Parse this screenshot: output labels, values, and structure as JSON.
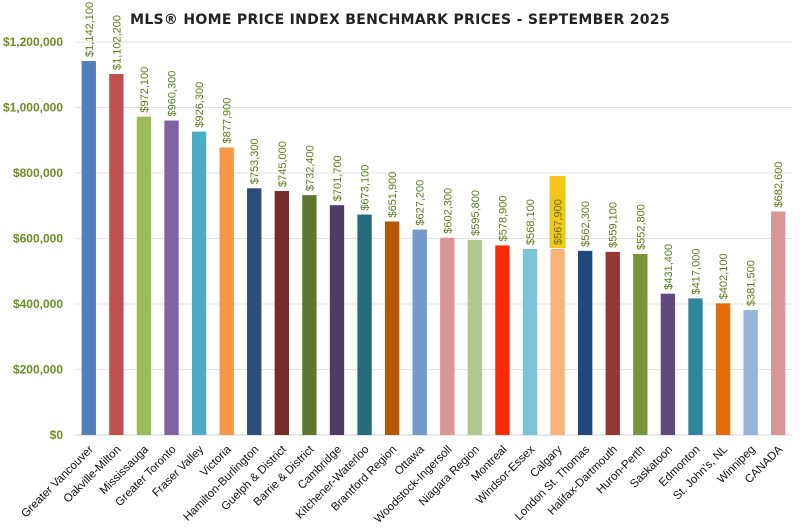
{
  "chart_data": {
    "type": "bar",
    "title": "MLS® HOME PRICE INDEX BENCHMARK PRICES - SEPTEMBER 2025",
    "xlabel": "",
    "ylabel": "",
    "ylim": [
      0,
      1200000
    ],
    "yticks": [
      {
        "value": 0,
        "label": "$0"
      },
      {
        "value": 200000,
        "label": "$200,000"
      },
      {
        "value": 400000,
        "label": "$400,000"
      },
      {
        "value": 600000,
        "label": "$600,000"
      },
      {
        "value": 800000,
        "label": "$800,000"
      },
      {
        "value": 1000000,
        "label": "$1,000,000"
      },
      {
        "value": 1200000,
        "label": "$1,200,000"
      }
    ],
    "grid": true,
    "legend": "none",
    "highlighted_category": "Calgary",
    "highlight_color": "#f5c518",
    "categories": [
      "Greater Vancouver",
      "Oakville-Milton",
      "Mississauga",
      "Greater Toronto",
      "Fraser Valley",
      "Victoria",
      "Hamilton-Burlington",
      "Guelph & District",
      "Barrie & District",
      "Cambridge",
      "Kitchener-Waterloo",
      "Brantford Region",
      "Ottawa",
      "Woodstock-Ingersoll",
      "Niagara Region",
      "Montreal",
      "Windsor-Essex",
      "Calgary",
      "London St. Thomas",
      "Halifax-Dartmouth",
      "Huron-Perth",
      "Saskatoon",
      "Edmonton",
      "St. John's, NL",
      "Winnipeg",
      "CANADA"
    ],
    "values": [
      1142100,
      1102200,
      972100,
      960300,
      926300,
      877900,
      753300,
      745000,
      732400,
      701700,
      673100,
      651900,
      627200,
      602300,
      595800,
      578900,
      568100,
      567900,
      562300,
      559100,
      552800,
      431400,
      417000,
      402100,
      381500,
      682600
    ],
    "value_labels": [
      "$1,142,100",
      "$1,102,200",
      "$972,100",
      "$960,300",
      "$926,300",
      "$877,900",
      "$753,300",
      "$745,000",
      "$732,400",
      "$701,700",
      "$673,100",
      "$651,900",
      "$627,200",
      "$602,300",
      "$595,800",
      "$578,900",
      "$568,100",
      "$567,900",
      "$562,300",
      "$559,100",
      "$552,800",
      "$431,400",
      "$417,000",
      "$402,100",
      "$381,500",
      "$682,600"
    ],
    "colors": [
      "#4f81bd",
      "#c0504d",
      "#9bbb59",
      "#8064a2",
      "#4bacc6",
      "#f79646",
      "#2c4d75",
      "#772c2a",
      "#5f7530",
      "#4d3b62",
      "#276a7c",
      "#b65708",
      "#729aca",
      "#d99694",
      "#b3c88f",
      "#ff2a00",
      "#7bc4d8",
      "#fab27a",
      "#1f497d",
      "#953735",
      "#77933c",
      "#604a7b",
      "#31859c",
      "#e46c0a",
      "#95b3d7",
      "#da9694"
    ]
  }
}
